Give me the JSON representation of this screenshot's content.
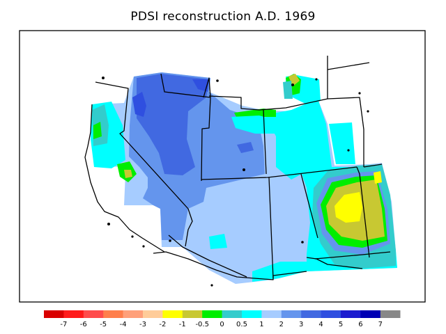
{
  "title": "PDSI reconstruction A.D. 1969",
  "legend": {
    "colors": [
      "#d90000",
      "#ff1b1b",
      "#ff4c4c",
      "#ff7f4c",
      "#ffa07a",
      "#ffcc99",
      "#ffff00",
      "#c8c832",
      "#00ee00",
      "#33cccc",
      "#00ffff",
      "#a6ccff",
      "#6495ed",
      "#4169e1",
      "#2f4fe0",
      "#1c1ccf",
      "#0000b4",
      "#888888"
    ],
    "labels": [
      "-7",
      "-6",
      "-5",
      "-4",
      "-3",
      "-2",
      "-1",
      "-0.5",
      "0",
      "0.5",
      "1",
      "2",
      "3",
      "4",
      "5",
      "6",
      "7"
    ]
  }
}
